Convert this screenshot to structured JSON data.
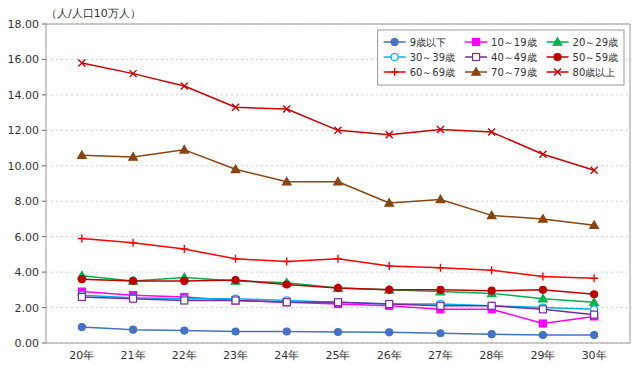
{
  "chart_data": {
    "type": "line",
    "y_label": "（人/人口10万人）",
    "categories": [
      "20年",
      "21年",
      "22年",
      "23年",
      "24年",
      "25年",
      "26年",
      "27年",
      "28年",
      "29年",
      "30年"
    ],
    "series": [
      {
        "name": "9歳以下",
        "color": "#4472C4",
        "marker": "circle",
        "values": [
          0.9,
          0.75,
          0.7,
          0.65,
          0.65,
          0.62,
          0.6,
          0.55,
          0.5,
          0.45,
          0.45
        ]
      },
      {
        "name": "10～19歳",
        "color": "#FF00FF",
        "marker": "square",
        "values": [
          2.9,
          2.7,
          2.6,
          2.4,
          2.3,
          2.2,
          2.1,
          1.9,
          1.9,
          1.1,
          1.5
        ]
      },
      {
        "name": "20～29歳",
        "color": "#00B050",
        "marker": "triangle",
        "values": [
          3.8,
          3.5,
          3.7,
          3.5,
          3.4,
          3.1,
          3.0,
          2.9,
          2.8,
          2.5,
          2.3
        ]
      },
      {
        "name": "30～39歳",
        "color": "#00B0F0",
        "marker": "circle-open",
        "values": [
          2.7,
          2.55,
          2.5,
          2.5,
          2.4,
          2.3,
          2.2,
          2.2,
          2.1,
          2.0,
          1.9
        ]
      },
      {
        "name": "40～49歳",
        "color": "#7030A0",
        "marker": "square-open",
        "values": [
          2.6,
          2.5,
          2.4,
          2.4,
          2.3,
          2.3,
          2.2,
          2.1,
          2.1,
          1.9,
          1.6
        ]
      },
      {
        "name": "50～59歳",
        "color": "#C00000",
        "marker": "circle",
        "values": [
          3.6,
          3.5,
          3.5,
          3.55,
          3.3,
          3.1,
          3.0,
          3.0,
          2.95,
          3.0,
          2.75
        ]
      },
      {
        "name": "60～69歳",
        "color": "#FF0000",
        "marker": "plus",
        "values": [
          5.9,
          5.65,
          5.3,
          4.75,
          4.6,
          4.75,
          4.35,
          4.25,
          4.1,
          3.75,
          3.65
        ]
      },
      {
        "name": "70～79歳",
        "color": "#8B4513",
        "marker": "triangle",
        "values": [
          10.6,
          10.5,
          10.9,
          9.8,
          9.1,
          9.1,
          7.9,
          8.1,
          7.2,
          7.0,
          6.65
        ]
      },
      {
        "name": "80歳以上",
        "color": "#CC0000",
        "marker": "cross",
        "values": [
          15.8,
          15.2,
          14.5,
          13.3,
          13.2,
          12.0,
          11.75,
          12.05,
          11.9,
          10.65,
          9.75
        ]
      }
    ],
    "ylim": [
      0,
      18.0
    ],
    "yticks": [
      {
        "value": 0.0,
        "label": "0.00"
      },
      {
        "value": 2.0,
        "label": "2.00"
      },
      {
        "value": 4.0,
        "label": "4.00"
      },
      {
        "value": 6.0,
        "label": "6.00"
      },
      {
        "value": 8.0,
        "label": "8.00"
      },
      {
        "value": 10.0,
        "label": "10.00"
      },
      {
        "value": 12.0,
        "label": "12.00"
      },
      {
        "value": 14.0,
        "label": "14.00"
      },
      {
        "value": 16.0,
        "label": "16.00"
      },
      {
        "value": 18.0,
        "label": "18.00"
      }
    ],
    "grid": true,
    "legend": "upper right"
  }
}
